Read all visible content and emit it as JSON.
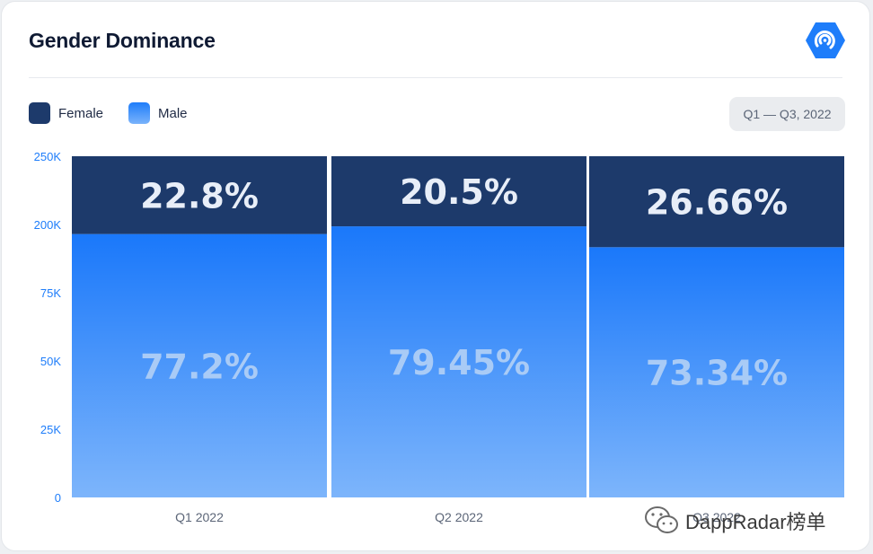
{
  "header": {
    "title": "Gender Dominance",
    "logo_icon": "dappradar-logo-icon"
  },
  "legend": [
    {
      "label": "Female",
      "color": "#1d3a6b"
    },
    {
      "label": "Male",
      "color": "#1e7dfa"
    }
  ],
  "date_range": "Q1 — Q3, 2022",
  "watermark": {
    "text": "DappRadar榜单",
    "icon": "wechat-icon"
  },
  "chart_data": {
    "type": "bar",
    "stacked": true,
    "categories": [
      "Q1 2022",
      "Q2 2022",
      "Q3 2022"
    ],
    "series": [
      {
        "name": "Male",
        "values": [
          77.2,
          79.45,
          73.34
        ],
        "labels": [
          "77.2%",
          "79.45%",
          "73.34%"
        ],
        "color": "#1e7dfa"
      },
      {
        "name": "Female",
        "values": [
          22.8,
          20.5,
          26.66
        ],
        "labels": [
          "22.8%",
          "20.5%",
          "26.66%"
        ],
        "color": "#1d3a6b"
      }
    ],
    "yticks": [
      "0",
      "25K",
      "50K",
      "75K",
      "200K",
      "250K"
    ],
    "ylim": [
      0,
      100
    ],
    "legend_position": "top-left",
    "grid": false
  }
}
